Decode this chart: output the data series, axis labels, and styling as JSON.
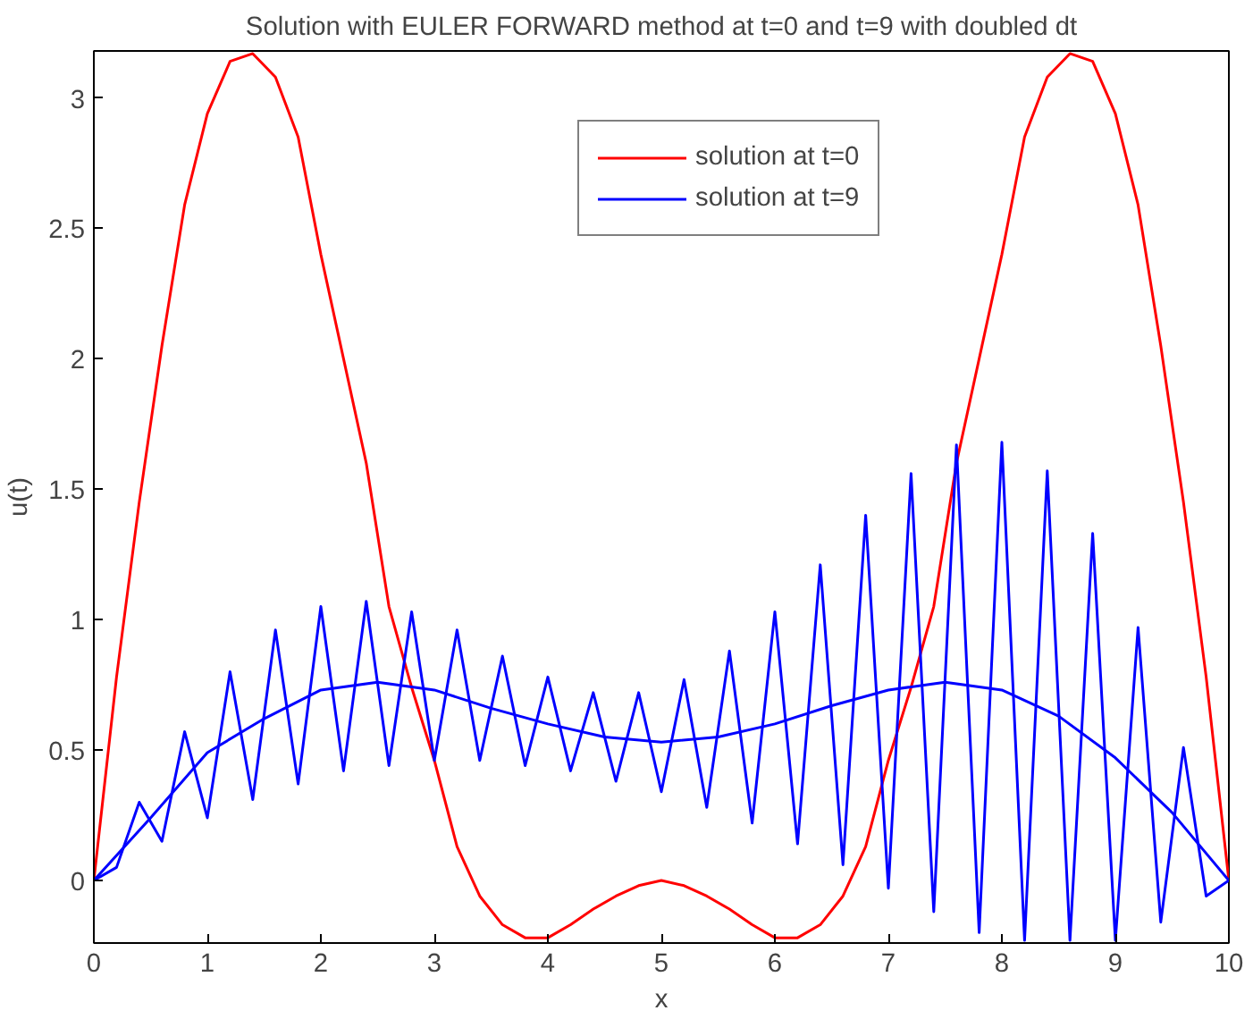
{
  "chart_data": {
    "type": "line",
    "title": "Solution with EULER FORWARD method at t=0 and t=9 with doubled dt",
    "xlabel": "x",
    "ylabel": "u(t)",
    "x": [
      0,
      0.2,
      0.4,
      0.6,
      0.8,
      1.0,
      1.2,
      1.4,
      1.6,
      1.8,
      2.0,
      2.2,
      2.4,
      2.6,
      2.8,
      3.0,
      3.2,
      3.4,
      3.6,
      3.8,
      4.0,
      4.2,
      4.4,
      4.6,
      4.8,
      5.0,
      5.2,
      5.4,
      5.6,
      5.8,
      6.0,
      6.2,
      6.4,
      6.6,
      6.8,
      7.0,
      7.2,
      7.4,
      7.6,
      7.8,
      8.0,
      8.2,
      8.4,
      8.6,
      8.8,
      9.0,
      9.2,
      9.4,
      9.6,
      9.8,
      10.0
    ],
    "series": [
      {
        "name": "solution at t=0",
        "color": "#ff0000",
        "values": [
          0,
          0.78,
          1.45,
          2.05,
          2.59,
          2.94,
          3.14,
          3.17,
          3.08,
          2.85,
          2.4,
          2.0,
          1.6,
          1.05,
          0.74,
          0.46,
          0.13,
          -0.06,
          -0.17,
          -0.22,
          -0.22,
          -0.17,
          -0.11,
          -0.06,
          -0.02,
          0,
          -0.02,
          -0.06,
          -0.11,
          -0.17,
          -0.22,
          -0.22,
          -0.17,
          -0.06,
          0.13,
          0.46,
          0.74,
          1.05,
          1.6,
          2.0,
          2.4,
          2.85,
          3.08,
          3.17,
          3.14,
          2.94,
          2.59,
          2.05,
          1.45,
          0.78,
          0
        ]
      },
      {
        "name": "solution at t=9",
        "color": "#0000ff",
        "values": [
          0,
          0.05,
          0.3,
          0.15,
          0.57,
          0.24,
          0.8,
          0.31,
          0.96,
          0.37,
          1.05,
          0.42,
          1.07,
          0.44,
          1.03,
          0.46,
          0.96,
          0.46,
          0.86,
          0.44,
          0.78,
          0.42,
          0.72,
          0.38,
          0.72,
          0.34,
          0.77,
          0.28,
          0.88,
          0.22,
          1.03,
          0.14,
          1.21,
          0.06,
          1.4,
          -0.03,
          1.56,
          -0.12,
          1.67,
          -0.2,
          1.68,
          -0.23,
          1.57,
          -0.23,
          1.33,
          -0.23,
          0.97,
          -0.16,
          0.51,
          -0.06,
          0
        ]
      },
      {
        "color": "#0000ff",
        "x": [
          0,
          0.5,
          1.0,
          1.5,
          2.0,
          2.5,
          3.0,
          3.5,
          4.0,
          4.5,
          5.0,
          5.5,
          6.0,
          6.5,
          7.0,
          7.5,
          8.0,
          8.5,
          9.0,
          9.5,
          10.0
        ],
        "values": [
          0,
          0.24,
          0.49,
          0.62,
          0.73,
          0.76,
          0.73,
          0.66,
          0.6,
          0.55,
          0.53,
          0.55,
          0.6,
          0.67,
          0.73,
          0.76,
          0.73,
          0.63,
          0.47,
          0.26,
          0
        ]
      }
    ],
    "xlim": [
      0,
      10
    ],
    "ylim": [
      -0.24,
      3.18
    ],
    "xticks": [
      0,
      1,
      2,
      3,
      4,
      5,
      6,
      7,
      8,
      9,
      10
    ],
    "yticks": [
      0,
      0.5,
      1,
      1.5,
      2,
      2.5,
      3
    ],
    "grid": false,
    "legend": "top right",
    "line_style": "solid"
  }
}
